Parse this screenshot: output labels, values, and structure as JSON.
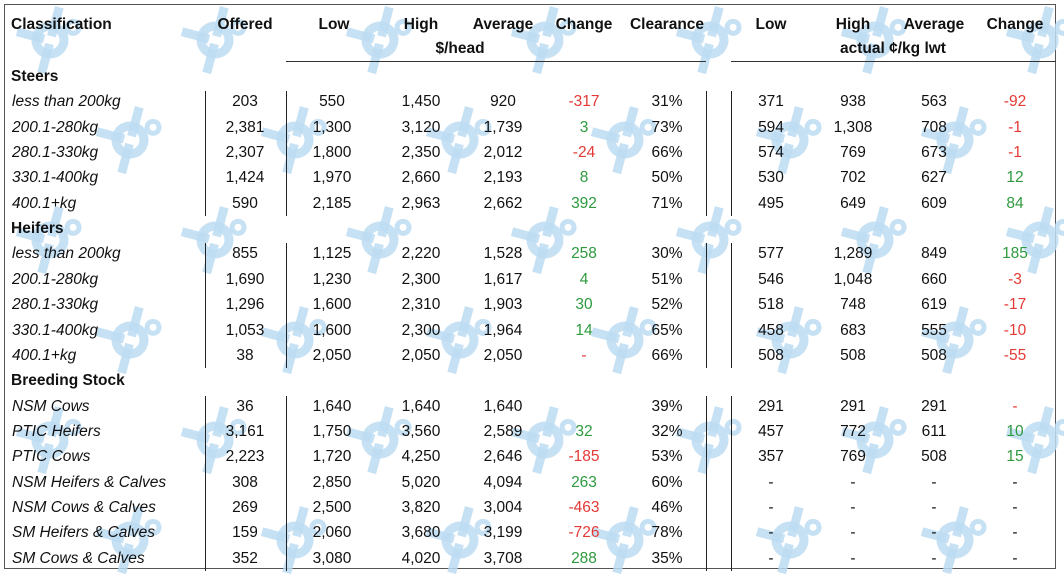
{
  "header": {
    "classification": "Classification",
    "offered": "Offered",
    "low": "Low",
    "high": "High",
    "average": "Average",
    "change": "Change",
    "clearance": "Clearance",
    "unit_head": "$/head",
    "low2": "Low",
    "high2": "High",
    "average2": "Average",
    "change2": "Change",
    "unit_kg": "actual ¢/kg lwt"
  },
  "sections": [
    {
      "title": "Steers",
      "rows": [
        {
          "label": "less than 200kg",
          "offered": "203",
          "low": "550",
          "high": "1,450",
          "avg": "920",
          "change": "-317",
          "clearance": "31%",
          "low2": "371",
          "high2": "938",
          "avg2": "563",
          "change2": "-92"
        },
        {
          "label": "200.1-280kg",
          "offered": "2,381",
          "low": "1,300",
          "high": "3,120",
          "avg": "1,739",
          "change": "3",
          "clearance": "73%",
          "low2": "594",
          "high2": "1,308",
          "avg2": "708",
          "change2": "-1"
        },
        {
          "label": "280.1-330kg",
          "offered": "2,307",
          "low": "1,800",
          "high": "2,350",
          "avg": "2,012",
          "change": "-24",
          "clearance": "66%",
          "low2": "574",
          "high2": "769",
          "avg2": "673",
          "change2": "-1"
        },
        {
          "label": "330.1-400kg",
          "offered": "1,424",
          "low": "1,970",
          "high": "2,660",
          "avg": "2,193",
          "change": "8",
          "clearance": "50%",
          "low2": "530",
          "high2": "702",
          "avg2": "627",
          "change2": "12"
        },
        {
          "label": "400.1+kg",
          "offered": "590",
          "low": "2,185",
          "high": "2,963",
          "avg": "2,662",
          "change": "392",
          "clearance": "71%",
          "low2": "495",
          "high2": "649",
          "avg2": "609",
          "change2": "84"
        }
      ]
    },
    {
      "title": "Heifers",
      "rows": [
        {
          "label": "less than 200kg",
          "offered": "855",
          "low": "1,125",
          "high": "2,220",
          "avg": "1,528",
          "change": "258",
          "clearance": "30%",
          "low2": "577",
          "high2": "1,289",
          "avg2": "849",
          "change2": "185"
        },
        {
          "label": "200.1-280kg",
          "offered": "1,690",
          "low": "1,230",
          "high": "2,300",
          "avg": "1,617",
          "change": "4",
          "clearance": "51%",
          "low2": "546",
          "high2": "1,048",
          "avg2": "660",
          "change2": "-3"
        },
        {
          "label": "280.1-330kg",
          "offered": "1,296",
          "low": "1,600",
          "high": "2,310",
          "avg": "1,903",
          "change": "30",
          "clearance": "52%",
          "low2": "518",
          "high2": "748",
          "avg2": "619",
          "change2": "-17"
        },
        {
          "label": "330.1-400kg",
          "offered": "1,053",
          "low": "1,600",
          "high": "2,300",
          "avg": "1,964",
          "change": "14",
          "clearance": "65%",
          "low2": "458",
          "high2": "683",
          "avg2": "555",
          "change2": "-10"
        },
        {
          "label": "400.1+kg",
          "offered": "38",
          "low": "2,050",
          "high": "2,050",
          "avg": "2,050",
          "change": "-",
          "clearance": "66%",
          "low2": "508",
          "high2": "508",
          "avg2": "508",
          "change2": "-55"
        }
      ]
    },
    {
      "title": "Breeding Stock",
      "rows": [
        {
          "label": "NSM Cows",
          "offered": "36",
          "low": "1,640",
          "high": "1,640",
          "avg": "1,640",
          "change": "",
          "clearance": "39%",
          "low2": "291",
          "high2": "291",
          "avg2": "291",
          "change2": "-"
        },
        {
          "label": "PTIC Heifers",
          "offered": "3,161",
          "low": "1,750",
          "high": "3,560",
          "avg": "2,589",
          "change": "32",
          "clearance": "32%",
          "low2": "457",
          "high2": "772",
          "avg2": "611",
          "change2": "10"
        },
        {
          "label": "PTIC Cows",
          "offered": "2,223",
          "low": "1,720",
          "high": "4,250",
          "avg": "2,646",
          "change": "-185",
          "clearance": "53%",
          "low2": "357",
          "high2": "769",
          "avg2": "508",
          "change2": "15"
        },
        {
          "label": "NSM Heifers & Calves",
          "offered": "308",
          "low": "2,850",
          "high": "5,020",
          "avg": "4,094",
          "change": "263",
          "clearance": "60%",
          "low2": "-",
          "high2": "-",
          "avg2": "-",
          "change2": "-"
        },
        {
          "label": "NSM Cows & Calves",
          "offered": "269",
          "low": "2,500",
          "high": "3,820",
          "avg": "3,004",
          "change": "-463",
          "clearance": "46%",
          "low2": "-",
          "high2": "-",
          "avg2": "-",
          "change2": "-"
        },
        {
          "label": "SM Heifers & Calves",
          "offered": "159",
          "low": "2,060",
          "high": "3,680",
          "avg": "3,199",
          "change": "-726",
          "clearance": "78%",
          "low2": "-",
          "high2": "-",
          "avg2": "-",
          "change2": "-"
        },
        {
          "label": "SM Cows & Calves",
          "offered": "352",
          "low": "3,080",
          "high": "4,020",
          "avg": "3,708",
          "change": "288",
          "clearance": "35%",
          "low2": "-",
          "high2": "-",
          "avg2": "-",
          "change2": "-"
        }
      ]
    }
  ],
  "colors": {
    "negative": "#e53935",
    "positive": "#2e9a3e",
    "watermark": "#bcdcf2"
  },
  "watermark_icon": "livestock-logo-icon"
}
